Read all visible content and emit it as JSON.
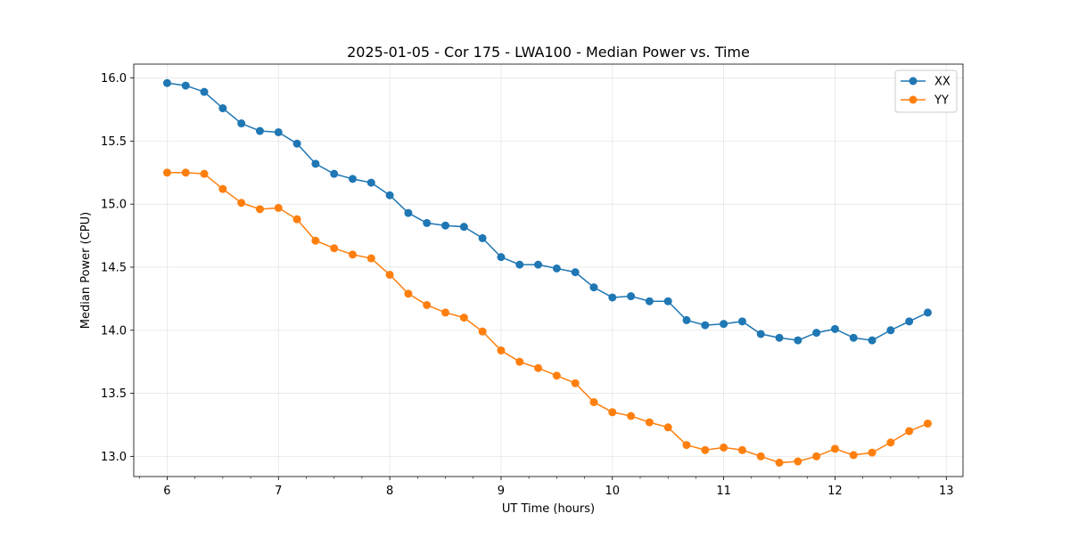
{
  "chart_data": {
    "type": "line",
    "title": "2025-01-05 - Cor 175 - LWA100 - Median Power vs. Time",
    "xlabel": "UT Time (hours)",
    "ylabel": "Median Power (CPU)",
    "xlim": [
      5.7,
      13.15
    ],
    "ylim": [
      12.84,
      16.11
    ],
    "x_ticks": [
      6,
      7,
      8,
      9,
      10,
      11,
      12,
      13
    ],
    "x_tick_labels": [
      "6",
      "7",
      "8",
      "9",
      "10",
      "11",
      "12",
      "13"
    ],
    "x_minor_ticks": [
      5.75,
      6.25,
      6.5,
      6.75,
      7.25,
      7.5,
      7.75,
      8.25,
      8.5,
      8.75,
      9.25,
      9.5,
      9.75,
      10.25,
      10.5,
      10.75,
      11.25,
      11.5,
      11.75,
      12.25,
      12.5,
      12.75
    ],
    "y_ticks": [
      13.0,
      13.5,
      14.0,
      14.5,
      15.0,
      15.5,
      16.0
    ],
    "y_tick_labels": [
      "13.0",
      "13.5",
      "14.0",
      "14.5",
      "15.0",
      "15.5",
      "16.0"
    ],
    "grid": true,
    "legend_position": "top-right",
    "x": [
      6.0,
      6.1667,
      6.3333,
      6.5,
      6.6667,
      6.8333,
      7.0,
      7.1667,
      7.3333,
      7.5,
      7.6667,
      7.8333,
      8.0,
      8.1667,
      8.3333,
      8.5,
      8.6667,
      8.8333,
      9.0,
      9.1667,
      9.3333,
      9.5,
      9.6667,
      9.8333,
      10.0,
      10.1667,
      10.3333,
      10.5,
      10.6667,
      10.8333,
      11.0,
      11.1667,
      11.3333,
      11.5,
      11.6667,
      11.8333,
      12.0,
      12.1667,
      12.3333,
      12.5,
      12.6667,
      12.8333
    ],
    "series": [
      {
        "name": "XX",
        "color": "#1f77b4",
        "values": [
          15.96,
          15.94,
          15.89,
          15.76,
          15.64,
          15.58,
          15.57,
          15.48,
          15.32,
          15.24,
          15.2,
          15.17,
          15.07,
          14.93,
          14.85,
          14.83,
          14.82,
          14.73,
          14.58,
          14.52,
          14.52,
          14.49,
          14.46,
          14.34,
          14.26,
          14.27,
          14.23,
          14.23,
          14.08,
          14.04,
          14.05,
          14.07,
          13.97,
          13.94,
          13.92,
          13.98,
          14.01,
          13.94,
          13.92,
          14.0,
          14.07,
          14.14
        ]
      },
      {
        "name": "YY",
        "color": "#ff7f0e",
        "values": [
          15.25,
          15.25,
          15.24,
          15.12,
          15.01,
          14.96,
          14.97,
          14.88,
          14.71,
          14.65,
          14.6,
          14.57,
          14.44,
          14.29,
          14.2,
          14.14,
          14.1,
          13.99,
          13.84,
          13.75,
          13.7,
          13.64,
          13.58,
          13.43,
          13.35,
          13.32,
          13.27,
          13.23,
          13.09,
          13.05,
          13.07,
          13.05,
          13.0,
          12.95,
          12.96,
          13.0,
          13.06,
          13.01,
          13.03,
          13.11,
          13.2,
          13.26
        ]
      }
    ]
  }
}
